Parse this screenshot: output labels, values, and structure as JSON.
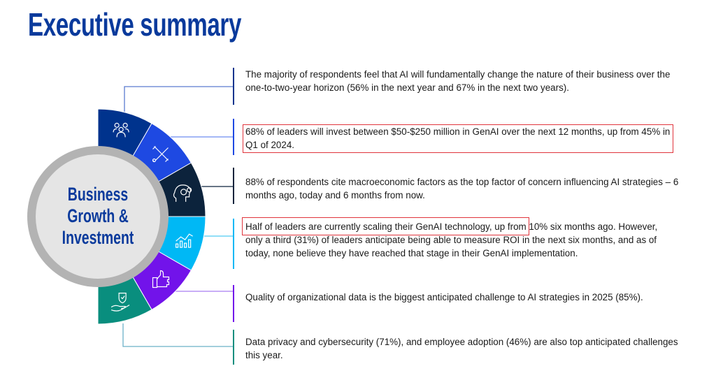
{
  "title": "Executive summary",
  "center": {
    "lines": [
      "Business",
      "Growth &",
      "Investment"
    ]
  },
  "segments": [
    {
      "icon": "people-icon",
      "color": "#00338d"
    },
    {
      "icon": "tools-icon",
      "color": "#1e49e2"
    },
    {
      "icon": "head-gears-icon",
      "color": "#0c233c"
    },
    {
      "icon": "chart-icon",
      "color": "#00b8f5"
    },
    {
      "icon": "thumbs-up-icon",
      "color": "#7213ea"
    },
    {
      "icon": "hand-shield-icon",
      "color": "#098e7e"
    }
  ],
  "highlight_color": "#e0343c",
  "points": [
    {
      "text": "The majority of respondents feel that AI will fundamentally change the nature of their business over the one-to-two-year horizon (56% in the next year and 67% in the next two years)."
    },
    {
      "text": "68% of leaders will invest between $50-$250 million in GenAI over the next 12 months, up from 45% in Q1 of 2024."
    },
    {
      "text": "88% of respondents cite macroeconomic factors as the top factor of concern influencing AI strategies – 6 months ago, today and 6 months from now."
    },
    {
      "text": "Half of leaders are currently scaling their GenAI technology, up from 10% six months ago. However, only a third (31%) of leaders anticipate being able to measure ROI in the next six months, and as of today, none believe they have reached that stage in their GenAI implementation."
    },
    {
      "text": "Quality of organizational data is the biggest anticipated challenge to AI strategies in 2025 (85%)."
    },
    {
      "text": "Data privacy and cybersecurity (71%), and employee adoption (46%) are also top anticipated challenges this year."
    }
  ]
}
